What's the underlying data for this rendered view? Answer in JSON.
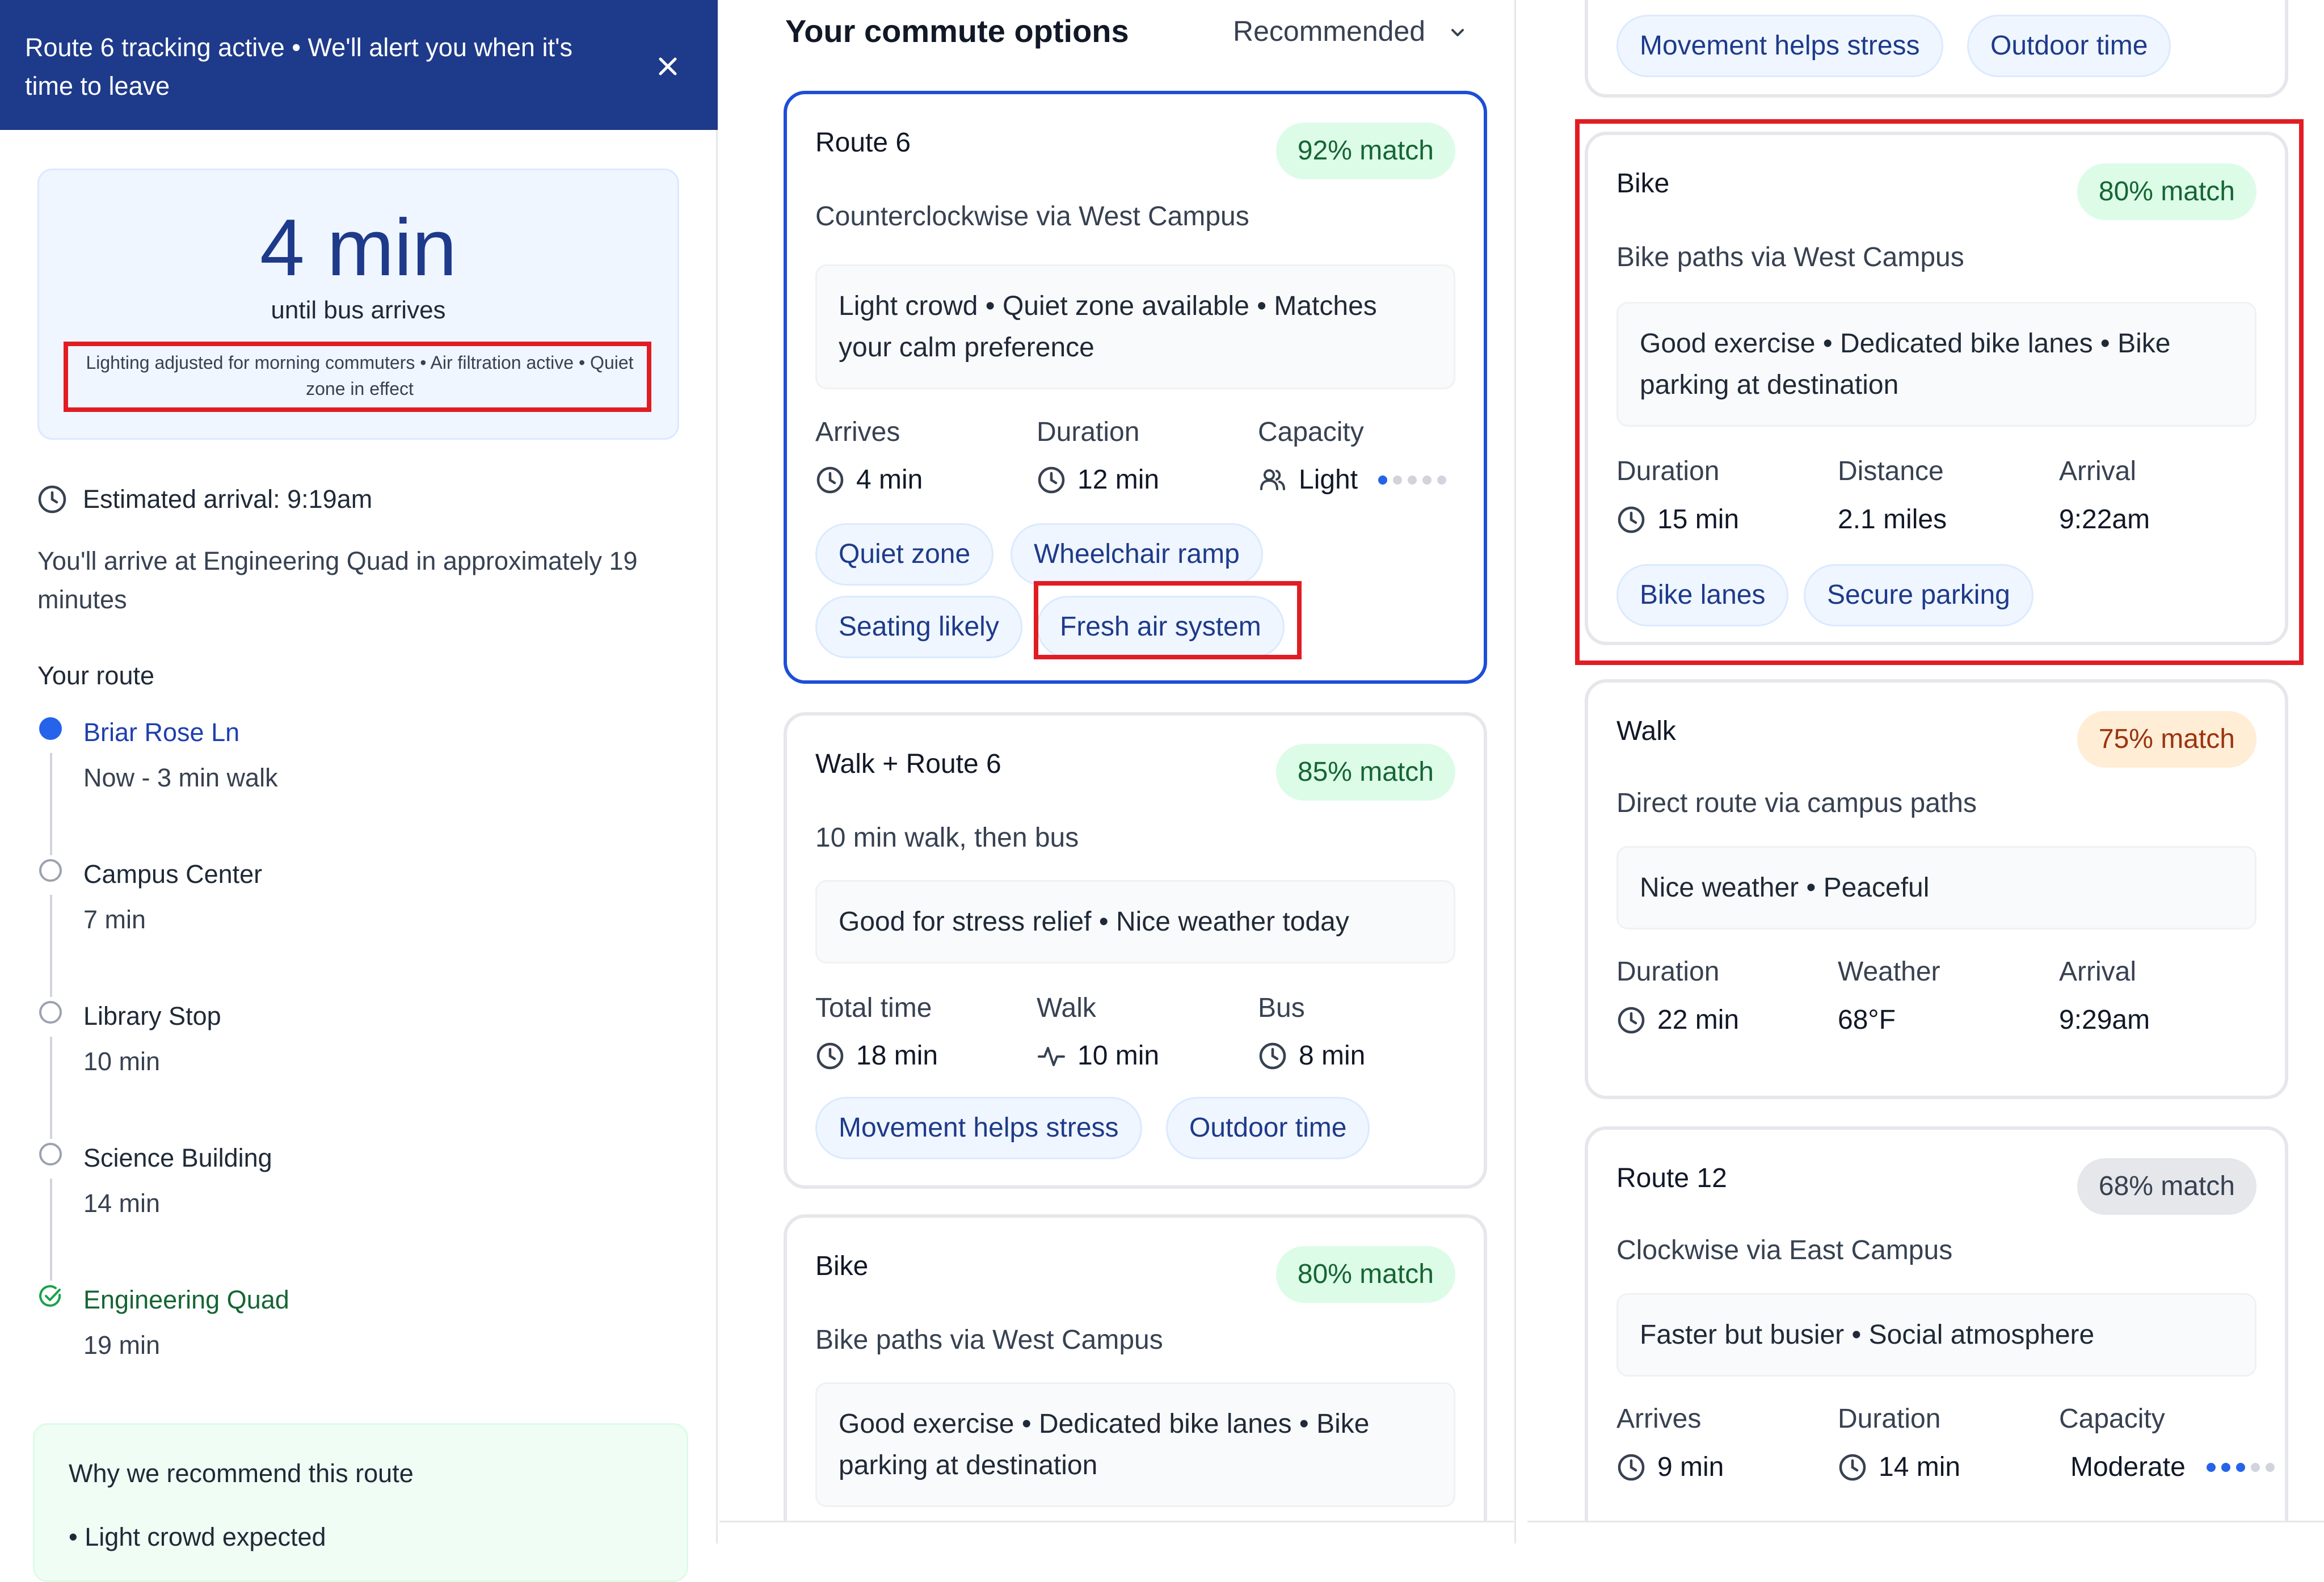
{
  "colors": {
    "banner_bg": "#1e3a8a",
    "selected_border": "#1d4ed8",
    "match_green_bg": "#dcfce7",
    "match_orange_bg": "#ffedd5",
    "match_gray_bg": "#e5e7eb",
    "tag_bg": "#eff6ff",
    "highlight_red": "#e11d24",
    "dot_active": "#2563eb",
    "dot_inactive": "#d1d5db"
  },
  "banner": {
    "text": "Route 6 tracking active • We'll alert you when it's time to leave",
    "close_icon": "close-icon"
  },
  "bus_status": {
    "eta": "4 min",
    "label": "until bus arrives",
    "note": "Lighting adjusted for morning commuters • Air filtration active • Quiet zone in effect"
  },
  "estimated_arrival": "Estimated arrival: 9:19am",
  "arrival_text": "You'll arrive at Engineering Quad in approximately 19 minutes",
  "route": {
    "heading": "Your route",
    "stops": [
      {
        "name": "Briar Rose Ln",
        "time": "Now - 3 min walk",
        "state": "current"
      },
      {
        "name": "Campus Center",
        "time": "7 min",
        "state": "upcoming"
      },
      {
        "name": "Library Stop",
        "time": "10 min",
        "state": "upcoming"
      },
      {
        "name": "Science Building",
        "time": "14 min",
        "state": "upcoming"
      },
      {
        "name": "Engineering Quad",
        "time": "19 min",
        "state": "destination"
      }
    ]
  },
  "why": {
    "title": "Why we recommend this route",
    "items": [
      "Light crowd expected"
    ]
  },
  "options": {
    "title": "Your commute options",
    "sort_label": "Recommended"
  },
  "middle_cards": [
    {
      "title": "Route 6",
      "match": "92% match",
      "subtitle": "Counterclockwise via West Campus",
      "note": "Light crowd • Quiet zone available • Matches your calm preference",
      "stats": [
        {
          "label": "Arrives",
          "value": "4 min"
        },
        {
          "label": "Duration",
          "value": "12 min"
        },
        {
          "label": "Capacity",
          "value": "Light",
          "level": 1,
          "max": 5
        }
      ],
      "tags": [
        "Quiet zone",
        "Wheelchair ramp",
        "Seating likely",
        "Fresh air system"
      ]
    },
    {
      "title": "Walk + Route 6",
      "match": "85% match",
      "subtitle": "10 min walk, then bus",
      "note": "Good for stress relief • Nice weather today",
      "stats": [
        {
          "label": "Total time",
          "value": "18 min"
        },
        {
          "label": "Walk",
          "value": "10 min"
        },
        {
          "label": "Bus",
          "value": "8 min"
        }
      ],
      "tags": [
        "Movement helps stress",
        "Outdoor time"
      ]
    },
    {
      "title": "Bike",
      "match": "80% match",
      "subtitle": "Bike paths via West Campus",
      "note": "Good exercise • Dedicated bike lanes • Bike parking at destination"
    }
  ],
  "right_cards": [
    {
      "tags": [
        "Movement helps stress",
        "Outdoor time"
      ]
    },
    {
      "title": "Bike",
      "match": "80% match",
      "subtitle": "Bike paths via West Campus",
      "note": "Good exercise • Dedicated bike lanes • Bike parking at destination",
      "stats": [
        {
          "label": "Duration",
          "value": "15 min"
        },
        {
          "label": "Distance",
          "value": "2.1 miles"
        },
        {
          "label": "Arrival",
          "value": "9:22am"
        }
      ],
      "tags": [
        "Bike lanes",
        "Secure parking"
      ]
    },
    {
      "title": "Walk",
      "match": "75% match",
      "subtitle": "Direct route via campus paths",
      "note": "Nice weather • Peaceful",
      "stats": [
        {
          "label": "Duration",
          "value": "22 min"
        },
        {
          "label": "Weather",
          "value": "68°F"
        },
        {
          "label": "Arrival",
          "value": "9:29am"
        }
      ]
    },
    {
      "title": "Route 12",
      "match": "68% match",
      "subtitle": "Clockwise via East Campus",
      "note": "Faster but busier • Social atmosphere",
      "stats": [
        {
          "label": "Arrives",
          "value": "9 min"
        },
        {
          "label": "Duration",
          "value": "14 min"
        },
        {
          "label": "Capacity",
          "value": "Moderate",
          "level": 3,
          "max": 5
        }
      ]
    }
  ]
}
